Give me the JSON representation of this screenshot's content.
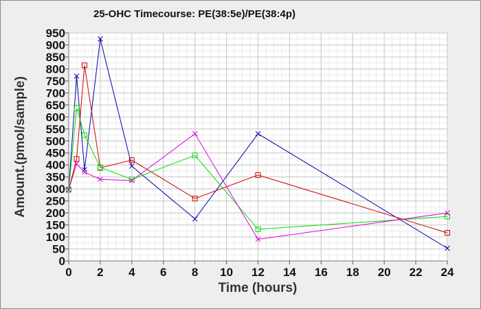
{
  "chart_data": {
    "type": "line",
    "title": "25-OHC Timecourse: PE(38:5e)/PE(38:4p)",
    "xlabel": "Time (hours)",
    "ylabel": "Amount.(pmol/sample)",
    "xlim": [
      0,
      24
    ],
    "ylim": [
      0,
      950
    ],
    "xticks": [
      0,
      2,
      4,
      6,
      8,
      10,
      12,
      14,
      16,
      18,
      20,
      22,
      24
    ],
    "yticks": [
      0,
      50,
      100,
      150,
      200,
      250,
      300,
      350,
      400,
      450,
      500,
      550,
      600,
      650,
      700,
      750,
      800,
      850,
      900,
      950
    ],
    "x_minor_step": 0.5,
    "y_minor_step": 25,
    "grid": true,
    "series": [
      {
        "color": "#0000aa",
        "marker": "x",
        "points": [
          [
            0,
            297
          ],
          [
            0.5,
            770
          ],
          [
            1,
            380
          ],
          [
            2,
            925
          ],
          [
            4,
            395
          ],
          [
            8,
            175
          ],
          [
            12,
            530
          ],
          [
            24,
            53
          ]
        ]
      },
      {
        "color": "#cc0000",
        "marker": "square",
        "points": [
          [
            0,
            297
          ],
          [
            0.5,
            425
          ],
          [
            1,
            815
          ],
          [
            2,
            388
          ],
          [
            4,
            420
          ],
          [
            8,
            260
          ],
          [
            12,
            358
          ],
          [
            24,
            117
          ]
        ]
      },
      {
        "color": "#00dd00",
        "marker": "square",
        "points": [
          [
            0,
            297
          ],
          [
            0.5,
            637
          ],
          [
            1,
            525
          ],
          [
            2,
            390
          ],
          [
            4,
            340
          ],
          [
            8,
            440
          ],
          [
            12,
            132
          ],
          [
            24,
            185
          ]
        ]
      },
      {
        "color": "#dd00dd",
        "marker": "x",
        "points": [
          [
            0,
            297
          ],
          [
            0.5,
            405
          ],
          [
            1,
            370
          ],
          [
            2,
            340
          ],
          [
            4,
            335
          ],
          [
            8,
            530
          ],
          [
            12,
            90
          ],
          [
            24,
            200
          ]
        ]
      }
    ]
  }
}
